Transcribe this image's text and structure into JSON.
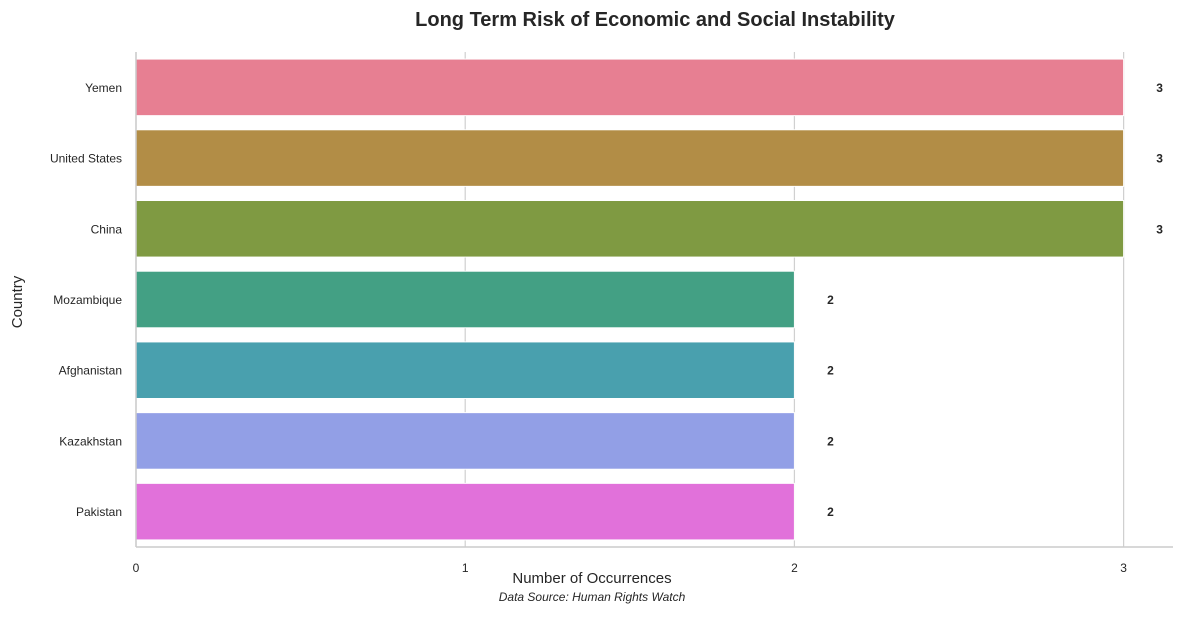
{
  "chart_data": {
    "type": "bar",
    "orientation": "horizontal",
    "title": "Long Term Risk of Economic and Social Instability",
    "xlabel": "Number of Occurrences",
    "ylabel": "Country",
    "caption": "Data Source: Human Rights Watch",
    "categories": [
      "Yemen",
      "United States",
      "China",
      "Mozambique",
      "Afghanistan",
      "Kazakhstan",
      "Pakistan"
    ],
    "values": [
      3,
      3,
      3,
      2,
      2,
      2,
      2
    ],
    "colors": [
      "#e77f92",
      "#b28d46",
      "#7f9a42",
      "#43a084",
      "#49a0ae",
      "#929fe6",
      "#e171da"
    ],
    "xlim": [
      0,
      3.15
    ],
    "xticks": [
      0,
      1,
      2,
      3
    ],
    "grid": "x",
    "legend": "none",
    "data_labels": true
  }
}
